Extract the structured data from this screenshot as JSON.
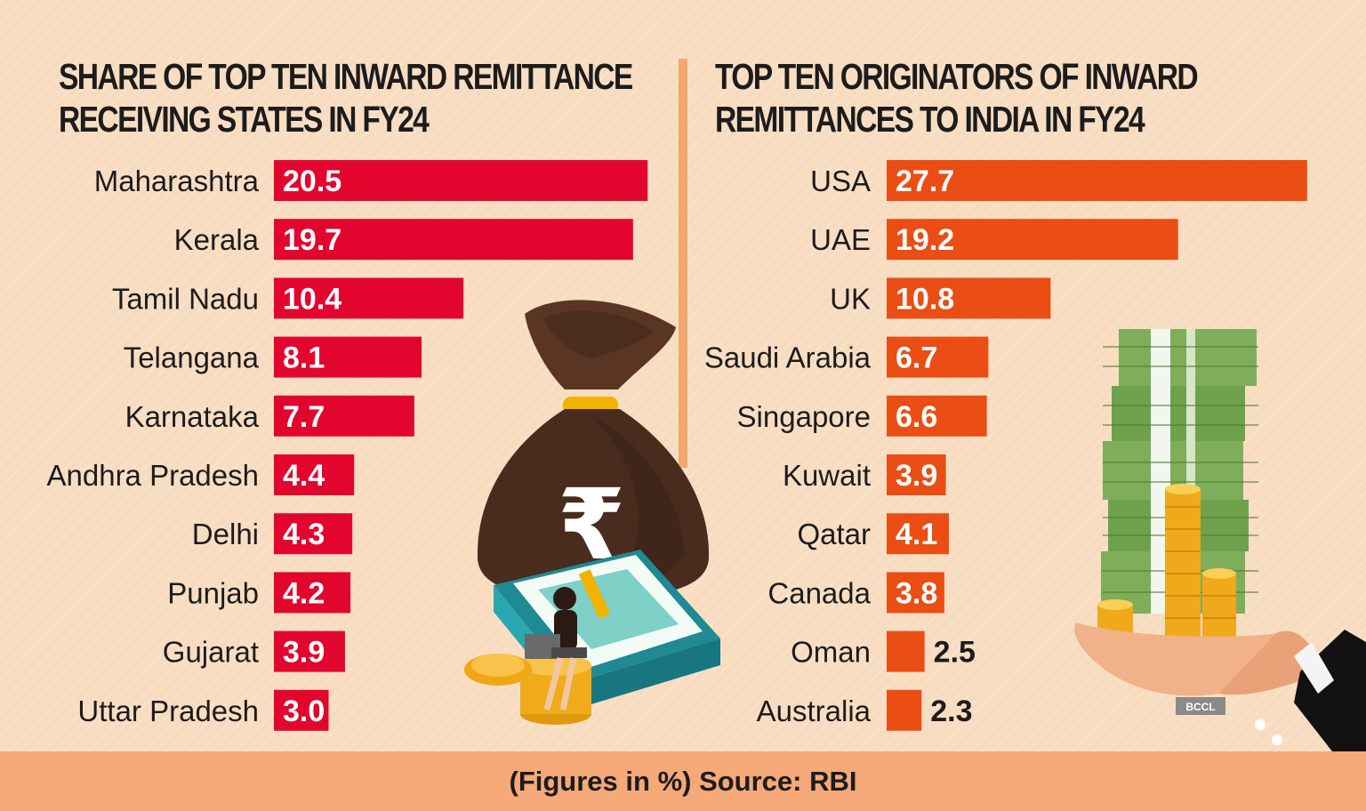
{
  "footer": {
    "note": "(Figures in %) Source: RBI"
  },
  "watermark": "BCCL",
  "colors": {
    "left_bars": "#e2062f",
    "right_bars": "#ea4e14",
    "background": "#f8dcc0",
    "footer": "#f5a878"
  },
  "illustrations": {
    "left": "money-bag-with-rupee-coins-and-cash",
    "right": "hand-holding-cash-stacks-and-coins"
  },
  "chart_data": [
    {
      "type": "bar",
      "orientation": "horizontal",
      "title_lines": [
        "SHARE OF TOP TEN INWARD REMITTANCE",
        "RECEIVING STATES IN FY24"
      ],
      "categories": [
        "Maharashtra",
        "Kerala",
        "Tamil Nadu",
        "Telangana",
        "Karnataka",
        "Andhra Pradesh",
        "Delhi",
        "Punjab",
        "Gujarat",
        "Uttar Pradesh"
      ],
      "values": [
        20.5,
        19.7,
        10.4,
        8.1,
        7.7,
        4.4,
        4.3,
        4.2,
        3.9,
        3.0
      ],
      "labels": [
        "20.5",
        "19.7",
        "10.4",
        "8.1",
        "7.7",
        "4.4",
        "4.3",
        "4.2",
        "3.9",
        "3.0"
      ],
      "unit": "%",
      "grid": false
    },
    {
      "type": "bar",
      "orientation": "horizontal",
      "title_lines": [
        "TOP TEN ORIGINATORS OF INWARD",
        "REMITTANCES TO INDIA IN FY24"
      ],
      "categories": [
        "USA",
        "UAE",
        "UK",
        "Saudi Arabia",
        "Singapore",
        "Kuwait",
        "Qatar",
        "Canada",
        "Oman",
        "Australia"
      ],
      "values": [
        27.7,
        19.2,
        10.8,
        6.7,
        6.6,
        3.9,
        4.1,
        3.8,
        2.5,
        2.3
      ],
      "labels": [
        "27.7",
        "19.2",
        "10.8",
        "6.7",
        "6.6",
        "3.9",
        "4.1",
        "3.8",
        "2.5",
        "2.3"
      ],
      "unit": "%",
      "grid": false
    }
  ]
}
